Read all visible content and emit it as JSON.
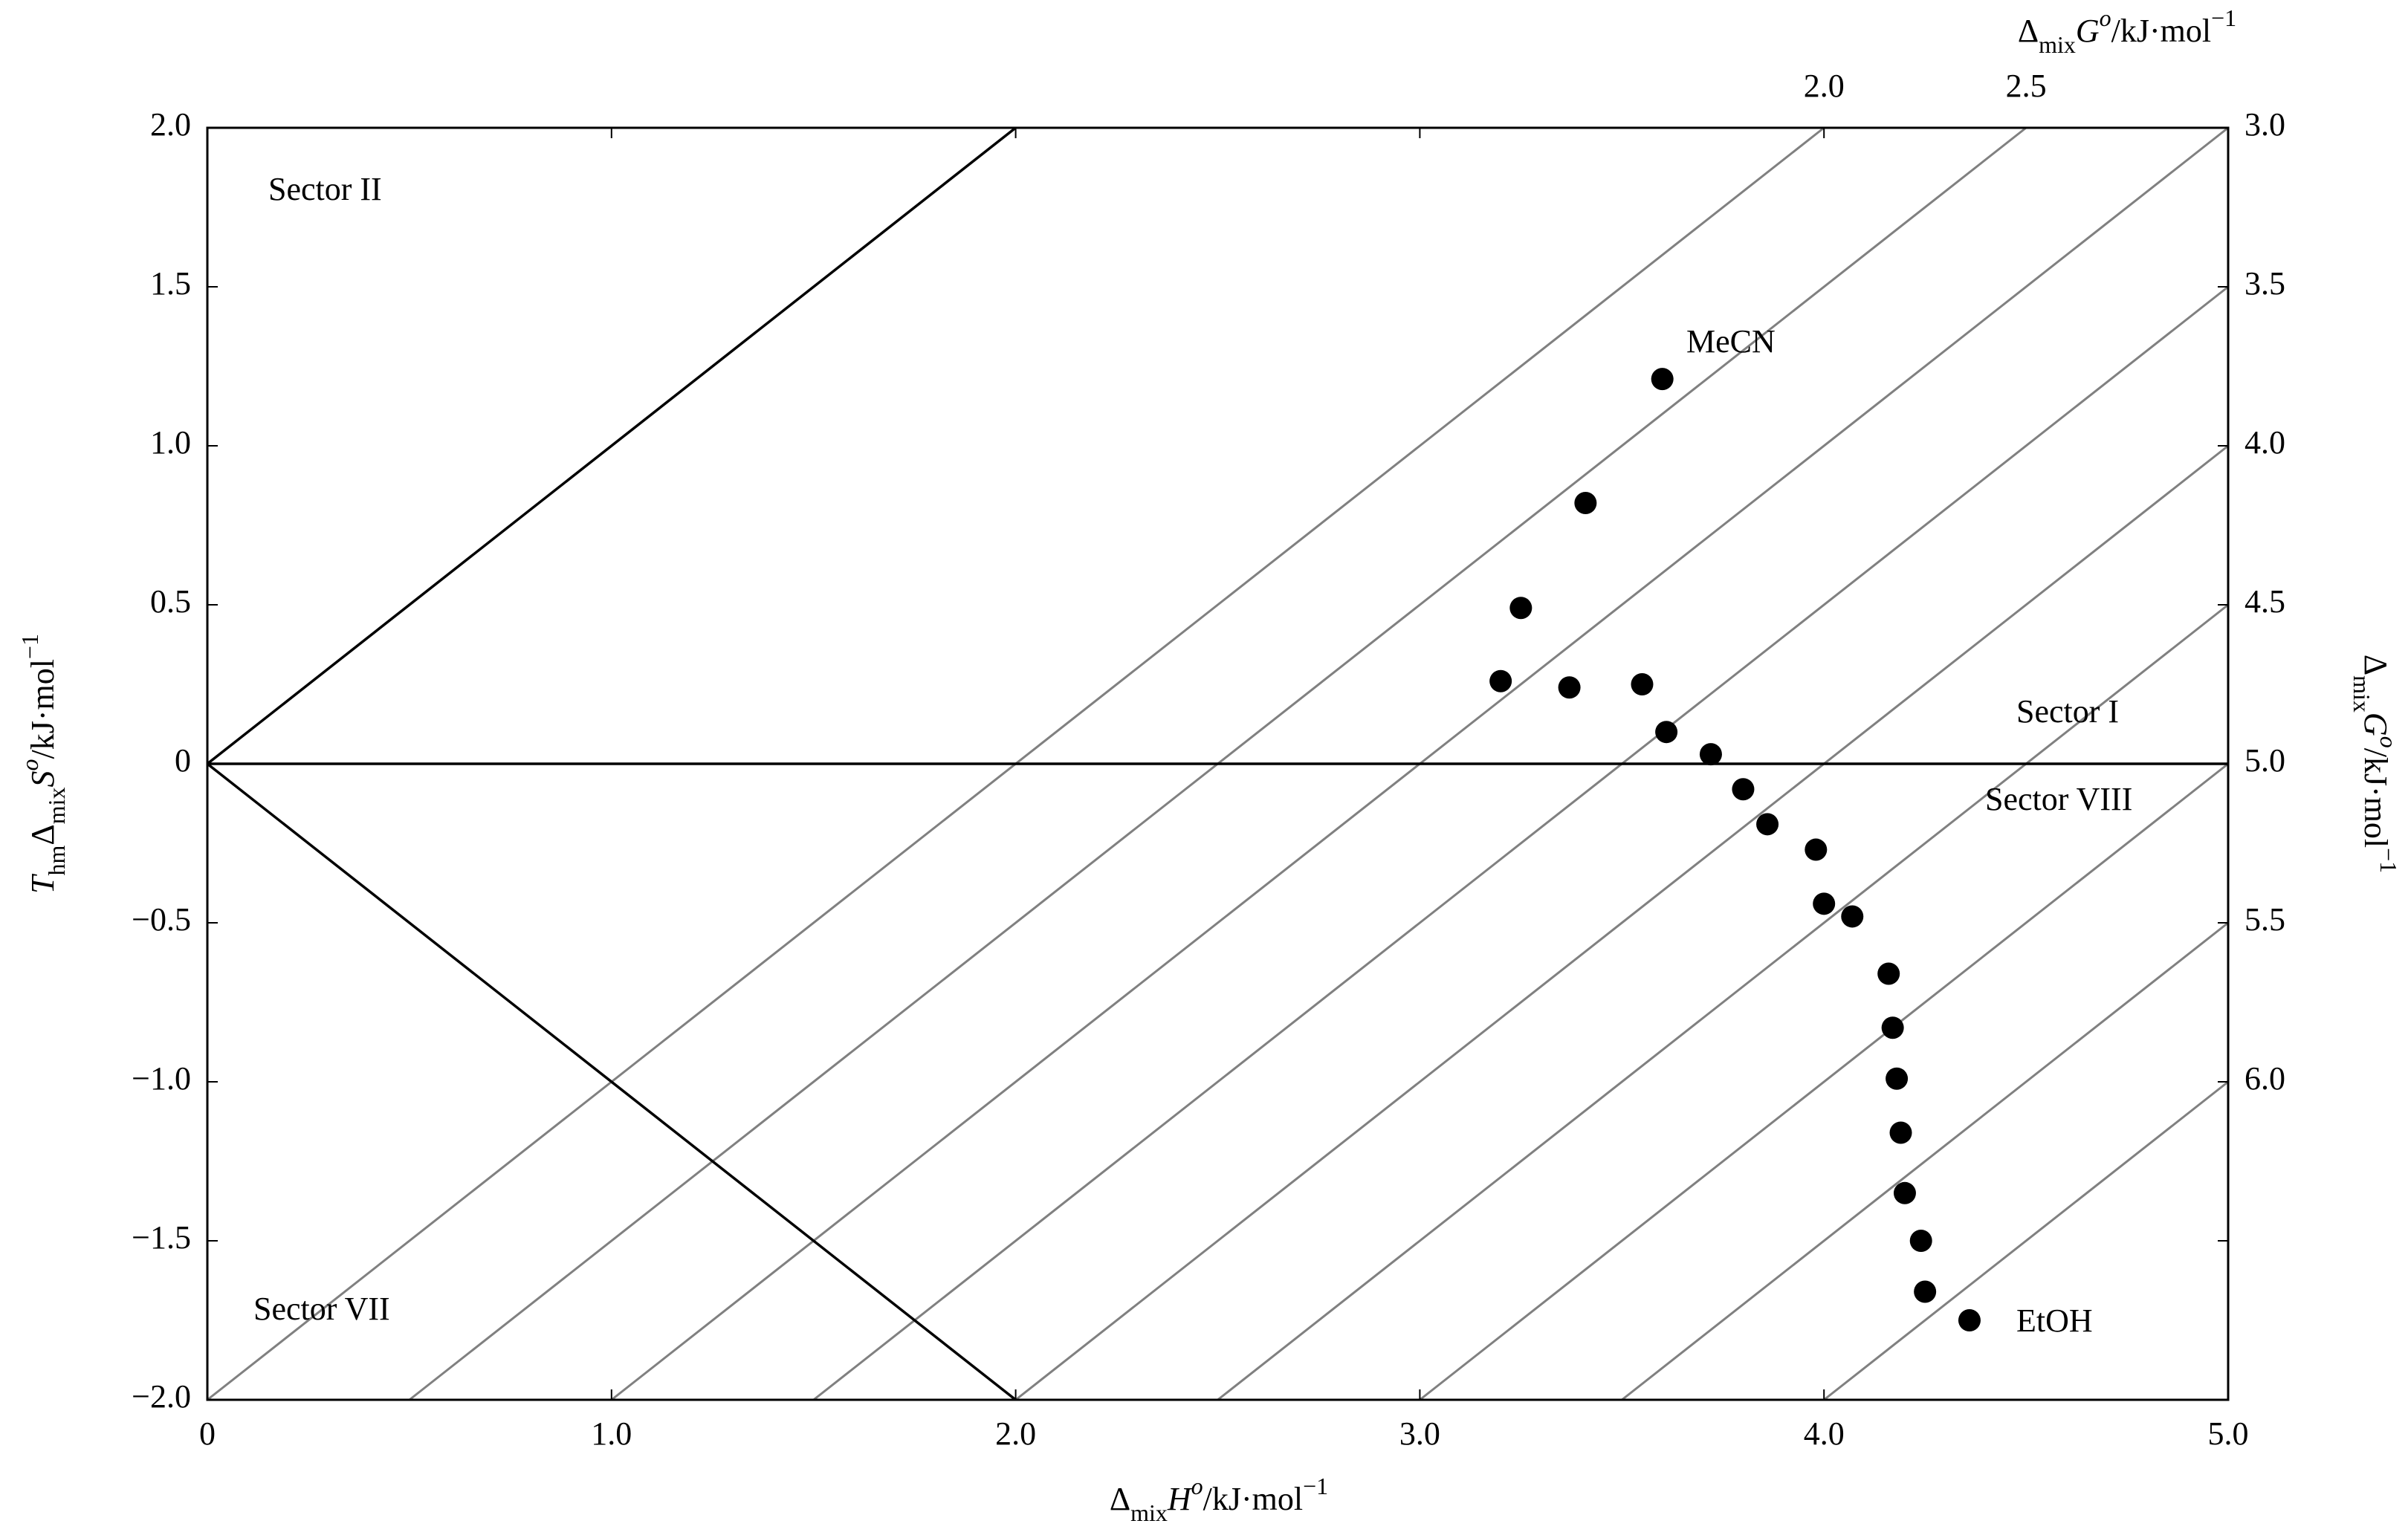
{
  "chart_data": {
    "type": "scatter",
    "x_label": [
      {
        "text": "Δ"
      },
      {
        "text": "mix",
        "style": "sub"
      },
      {
        "text": "H",
        "style": "italic"
      },
      {
        "text": "o",
        "style": "sup"
      },
      {
        "text": "/kJ·mol"
      },
      {
        "text": "−1",
        "style": "sup"
      }
    ],
    "y_label": [
      {
        "text": "T",
        "style": "italic"
      },
      {
        "text": "hm",
        "style": "sub"
      },
      {
        "text": "Δ"
      },
      {
        "text": "mix",
        "style": "sub"
      },
      {
        "text": "S",
        "style": "italic"
      },
      {
        "text": "o",
        "style": "sup"
      },
      {
        "text": "/kJ·mol"
      },
      {
        "text": "−1",
        "style": "sup"
      }
    ],
    "g_label": [
      {
        "text": "Δ"
      },
      {
        "text": "mix",
        "style": "sub"
      },
      {
        "text": "G",
        "style": "italic"
      },
      {
        "text": "o",
        "style": "sup"
      },
      {
        "text": "/kJ·mol"
      },
      {
        "text": "−1",
        "style": "sup"
      }
    ],
    "xlim": [
      0,
      5
    ],
    "ylim": [
      -2,
      2
    ],
    "xticks": [
      0,
      {
        "value": 1,
        "label": "1.0"
      },
      {
        "value": 2,
        "label": "2.0"
      },
      {
        "value": 3,
        "label": "3.0"
      },
      {
        "value": 4,
        "label": "4.0"
      },
      {
        "value": 5,
        "label": "5.0"
      }
    ],
    "yticks": [
      {
        "value": -2,
        "label": "−2.0"
      },
      {
        "value": -1.5,
        "label": "−1.5"
      },
      {
        "value": -1,
        "label": "−1.0"
      },
      {
        "value": -0.5,
        "label": "−0.5"
      },
      0,
      0.5,
      {
        "value": 1,
        "label": "1.0"
      },
      1.5,
      {
        "value": 2,
        "label": "2.0"
      }
    ],
    "g_lines": [
      2,
      2.5,
      3,
      3.5,
      4,
      4.5,
      5,
      5.5,
      6
    ],
    "g_top_ticks": [
      {
        "value": 2,
        "label": "2.0"
      },
      2.5
    ],
    "g_right_ticks": [
      {
        "value": 3,
        "label": "3.0"
      },
      3.5,
      {
        "value": 4,
        "label": "4.0"
      },
      4.5,
      {
        "value": 5,
        "label": "5.0"
      },
      5.5,
      {
        "value": 6,
        "label": "6.0"
      }
    ],
    "series": [
      {
        "color": "#000000",
        "x": [
          3.6,
          3.41,
          3.25,
          3.2,
          3.37,
          3.55,
          3.61,
          3.72,
          3.8,
          3.86,
          3.98,
          4.0,
          4.07,
          4.16,
          4.17,
          4.18,
          4.19,
          4.2,
          4.24,
          4.25,
          4.36
        ],
        "values": [
          1.21,
          0.82,
          0.49,
          0.26,
          0.24,
          0.25,
          0.1,
          0.03,
          -0.08,
          -0.19,
          -0.27,
          -0.44,
          -0.48,
          -0.66,
          -0.83,
          -0.99,
          -1.16,
          -1.35,
          -1.5,
          -1.66,
          -1.75
        ]
      }
    ],
    "annotations": [
      "Sector II",
      "Sector I",
      "Sector VIII",
      "Sector VII",
      "MeCN",
      "EtOH"
    ]
  }
}
